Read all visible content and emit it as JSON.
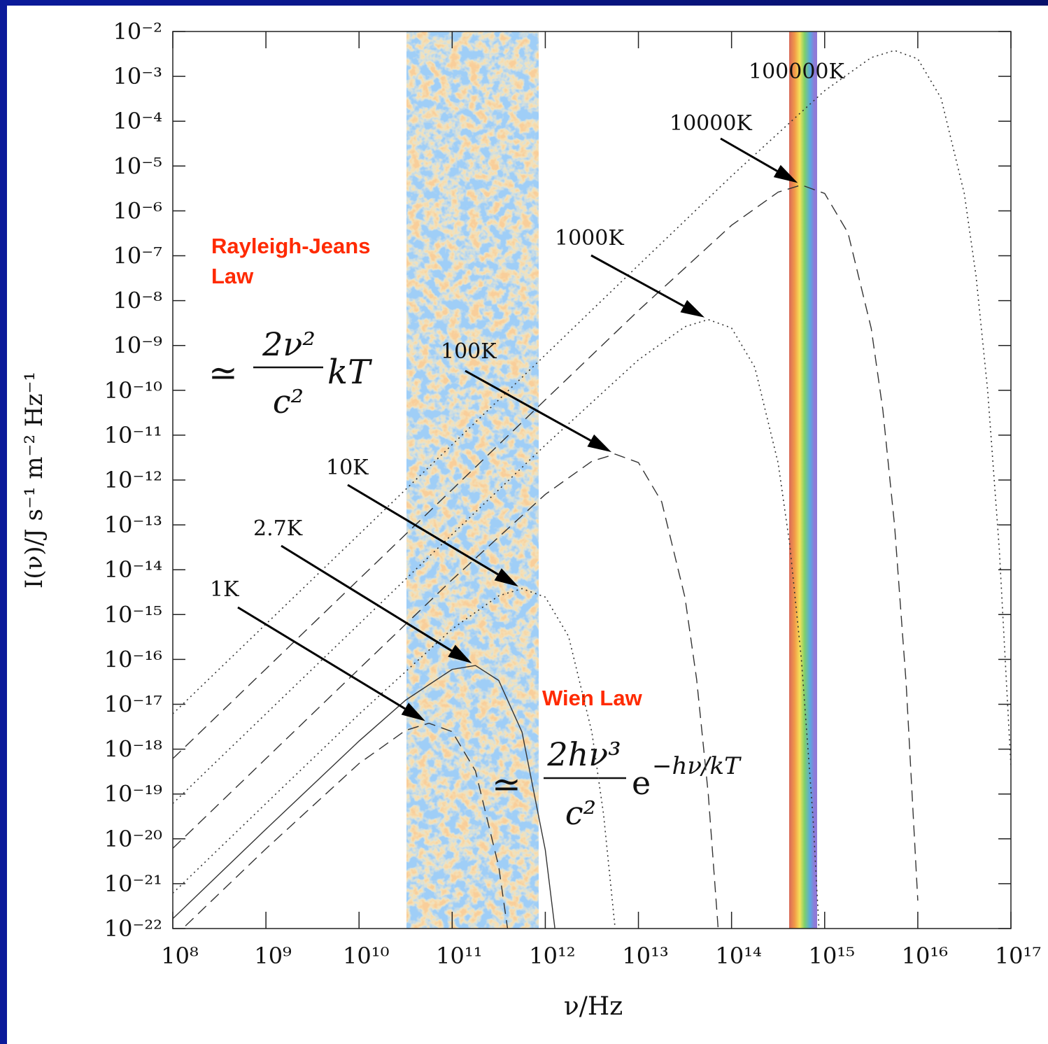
{
  "chart_data": {
    "type": "line",
    "xlabel": "ν/Hz",
    "ylabel": "I(ν)/J s⁻¹ m⁻² Hz⁻¹",
    "xscale": "log",
    "yscale": "log",
    "xlim": [
      100000000.0,
      1e+17
    ],
    "ylim": [
      1e-22,
      0.01
    ],
    "xticks": [
      {
        "value": 100000000.0,
        "label": "10⁸"
      },
      {
        "value": 1000000000.0,
        "label": "10⁹"
      },
      {
        "value": 10000000000.0,
        "label": "10¹⁰"
      },
      {
        "value": 100000000000.0,
        "label": "10¹¹"
      },
      {
        "value": 1000000000000.0,
        "label": "10¹²"
      },
      {
        "value": 10000000000000.0,
        "label": "10¹³"
      },
      {
        "value": 100000000000000.0,
        "label": "10¹⁴"
      },
      {
        "value": 1000000000000000.0,
        "label": "10¹⁵"
      },
      {
        "value": 1e+16,
        "label": "10¹⁶"
      },
      {
        "value": 1e+17,
        "label": "10¹⁷"
      }
    ],
    "yticks": [
      {
        "value": 0.01,
        "label": "10⁻²"
      },
      {
        "value": 0.001,
        "label": "10⁻³"
      },
      {
        "value": 0.0001,
        "label": "10⁻⁴"
      },
      {
        "value": 1e-05,
        "label": "10⁻⁵"
      },
      {
        "value": 1e-06,
        "label": "10⁻⁶"
      },
      {
        "value": 1e-07,
        "label": "10⁻⁷"
      },
      {
        "value": 1e-08,
        "label": "10⁻⁸"
      },
      {
        "value": 1e-09,
        "label": "10⁻⁹"
      },
      {
        "value": 1e-10,
        "label": "10⁻¹⁰"
      },
      {
        "value": 1e-11,
        "label": "10⁻¹¹"
      },
      {
        "value": 1e-12,
        "label": "10⁻¹²"
      },
      {
        "value": 1e-13,
        "label": "10⁻¹³"
      },
      {
        "value": 1e-14,
        "label": "10⁻¹⁴"
      },
      {
        "value": 1e-15,
        "label": "10⁻¹⁵"
      },
      {
        "value": 1e-16,
        "label": "10⁻¹⁶"
      },
      {
        "value": 1e-17,
        "label": "10⁻¹⁷"
      },
      {
        "value": 1e-18,
        "label": "10⁻¹⁸"
      },
      {
        "value": 1e-19,
        "label": "10⁻¹⁹"
      },
      {
        "value": 1e-20,
        "label": "10⁻²⁰"
      },
      {
        "value": 1e-21,
        "label": "10⁻²¹"
      },
      {
        "value": 1e-22,
        "label": "10⁻²²"
      }
    ],
    "series": [
      {
        "name": "1K",
        "color": "#333333",
        "dash": "dashed",
        "x": [
          100000000.0,
          1000000000.0,
          10000000000.0,
          31620000000.0,
          56230000000.0,
          100000000000.0,
          177800000000.0,
          316200000000.0,
          421700000000.0
        ],
        "values": [
          6.14e-23,
          6e-21,
          4.78e-19,
          2.62e-18,
          3.78e-18,
          2.45e-18,
          3.26e-19,
          2.4e-21,
          3.6e-23
        ]
      },
      {
        "name": "2.7K",
        "color": "#333333",
        "dash": "solid",
        "x": [
          100000000.0,
          1000000000.0,
          10000000000.0,
          31620000000.0,
          100000000000.0,
          177800000000.0,
          316200000000.0,
          562300000000.0,
          1000000000000.0,
          1259000000000.0,
          1334000000000.0
        ],
        "values": [
          1.66e-22,
          1.64e-20,
          1.514e-18,
          1.235e-17,
          6e-17,
          7.33e-17,
          3.39e-17,
          2.4e-18,
          5.64e-21,
          1.13e-22,
          3.6e-23
        ]
      },
      {
        "name": "10K",
        "color": "#333333",
        "dash": "dotted",
        "x": [
          100000000.0,
          1000000000.0,
          10000000000.0,
          100000000000.0,
          316200000000.0,
          562300000000.0,
          1000000000000.0,
          1778000000000.0,
          3162000000000.0,
          4217000000000.0,
          5623000000000.0
        ],
        "values": [
          6.14e-22,
          6.14e-20,
          6e-18,
          4.78e-16,
          2.62e-15,
          3.78e-15,
          2.45e-15,
          3.26e-16,
          2.4e-18,
          3.6e-20,
          1e-22
        ]
      },
      {
        "name": "100K",
        "color": "#333333",
        "dash": "dashed",
        "x": [
          100000000.0,
          1000000000.0,
          10000000000.0,
          100000000000.0,
          1000000000000.0,
          3162000000000.0,
          5623000000000.0,
          10000000000000.0,
          17780000000000.0,
          31620000000000.0,
          42170000000000.0,
          56230000000000.0,
          74990000000000.0
        ],
        "values": [
          6.14e-21,
          6.14e-19,
          6.14e-17,
          6e-15,
          4.78e-13,
          2.62e-12,
          3.78e-12,
          2.45e-12,
          3.26e-13,
          2.4e-15,
          3.6e-17,
          1e-19,
          2.9e-23
        ]
      },
      {
        "name": "1000K",
        "color": "#333333",
        "dash": "dotted",
        "x": [
          100000000.0,
          1000000000.0,
          10000000000.0,
          100000000000.0,
          1000000000000.0,
          10000000000000.0,
          31620000000000.0,
          56230000000000.0,
          100000000000000.0,
          177800000000000.0,
          316200000000000.0,
          421700000000000.0,
          562300000000000.0,
          749900000000000.0,
          1000000000000000.0
        ],
        "values": [
          6.14e-20,
          6.14e-18,
          6.14e-16,
          6.14e-14,
          6e-12,
          4.78e-10,
          2.62e-09,
          3.78e-09,
          2.45e-09,
          3.26e-10,
          2.4e-12,
          3.6e-14,
          1e-16,
          2.9e-20,
          4.2e-25
        ]
      },
      {
        "name": "10000K",
        "color": "#333333",
        "dash": "dashed",
        "x": [
          100000000.0,
          1000000000.0,
          10000000000.0,
          100000000000.0,
          1000000000000.0,
          10000000000000.0,
          100000000000000.0,
          316200000000000.0,
          562300000000000.0,
          1000000000000000.0,
          1778000000000000.0,
          3162000000000000.0,
          4217000000000000.0,
          5623000000000000.0,
          7499000000000000.0,
          1e+16
        ],
        "values": [
          6.14e-19,
          6.14e-17,
          6.14e-15,
          6.14e-13,
          6.14e-11,
          6e-09,
          4.78e-07,
          2.62e-06,
          3.78e-06,
          2.45e-06,
          3.26e-07,
          2.4e-09,
          3.6e-11,
          1e-13,
          2.9e-17,
          4.2e-22
        ]
      },
      {
        "name": "100000K",
        "color": "#333333",
        "dash": "dotted",
        "x": [
          100000000.0,
          1000000000.0,
          10000000000.0,
          100000000000.0,
          1000000000000.0,
          10000000000000.0,
          100000000000000.0,
          1000000000000000.0,
          3162000000000000.0,
          5623000000000000.0,
          1e+16,
          1.778e+16,
          3.162e+16,
          4.217e+16,
          5.623e+16,
          7.499e+16,
          1e+17
        ],
        "values": [
          6.14e-18,
          6.14e-16,
          6.14e-14,
          6.14e-12,
          6.14e-10,
          6.14e-08,
          6e-06,
          0.000478,
          0.00262,
          0.00378,
          0.00245,
          0.000326,
          2.4e-06,
          3.6e-08,
          1e-10,
          2.9e-14,
          4.2e-19
        ]
      }
    ],
    "annotations": {
      "rayleigh_jeans": {
        "label": [
          "Rayleigh-Jeans",
          "Law"
        ],
        "formula": {
          "approx": "≃",
          "numerator": "2ν²",
          "denominator": "c²",
          "factor": "kT"
        }
      },
      "wien": {
        "label": "Wien Law",
        "formula": {
          "approx": "≃",
          "numerator": "2hν³",
          "denominator": "c²",
          "factor": "e",
          "exponent": "−hν/kT"
        }
      }
    }
  }
}
